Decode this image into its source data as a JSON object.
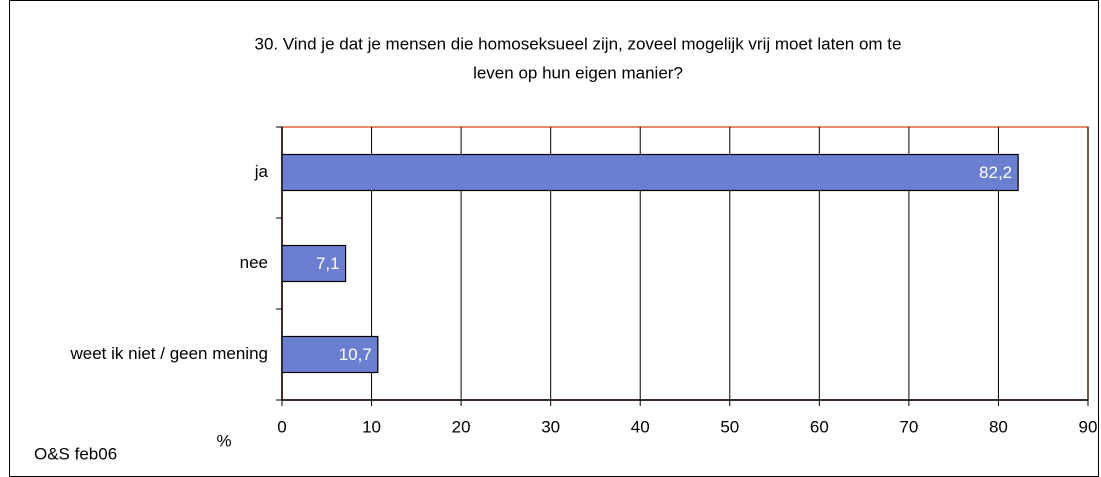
{
  "chart_data": {
    "type": "bar",
    "orientation": "horizontal",
    "title": [
      "30. Vind je dat je mensen die homoseksueel zijn, zoveel mogelijk vrij moet laten om te",
      "leven op hun eigen manier?"
    ],
    "categories": [
      "ja",
      "nee",
      "weet ik niet / geen mening"
    ],
    "values": [
      82.2,
      7.1,
      10.7
    ],
    "value_labels": [
      "82,2",
      "7,1",
      "10,7"
    ],
    "color": "#6b7fd1",
    "xlim": [
      0,
      90
    ],
    "xticks": [
      0,
      10,
      20,
      30,
      40,
      50,
      60,
      70,
      80,
      90
    ],
    "x_label": "%",
    "source": "O&S feb06",
    "grid": true
  }
}
